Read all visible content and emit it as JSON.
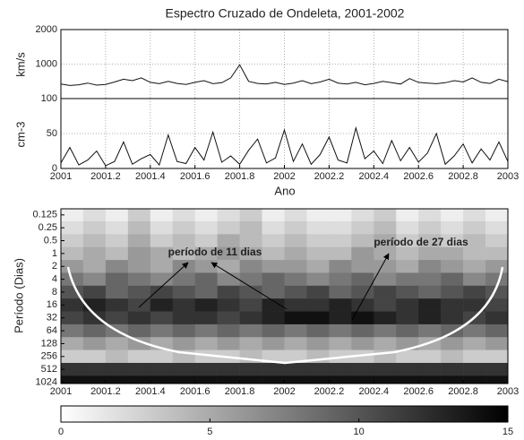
{
  "chart_data": [
    {
      "type": "line",
      "title": "Espectro Cruzado de Ondeleta, 2001-2002",
      "ylabel": "km/s",
      "color": "#111111",
      "x": [
        2001,
        2001.04,
        2001.08,
        2001.12,
        2001.16,
        2001.2,
        2001.24,
        2001.28,
        2001.32,
        2001.36,
        2001.4,
        2001.44,
        2001.48,
        2001.52,
        2001.56,
        2001.6,
        2001.64,
        2001.68,
        2001.72,
        2001.76,
        2001.8,
        2001.84,
        2001.88,
        2001.92,
        2001.96,
        2002,
        2002.04,
        2002.08,
        2002.12,
        2002.16,
        2002.2,
        2002.24,
        2002.28,
        2002.32,
        2002.36,
        2002.4,
        2002.44,
        2002.48,
        2002.52,
        2002.56,
        2002.6,
        2002.64,
        2002.68,
        2002.72,
        2002.76,
        2002.8,
        2002.84,
        2002.88,
        2002.92,
        2002.96,
        2003
      ],
      "values": [
        420,
        380,
        400,
        450,
        390,
        410,
        480,
        560,
        520,
        600,
        470,
        430,
        500,
        440,
        410,
        470,
        520,
        430,
        460,
        600,
        980,
        500,
        440,
        420,
        470,
        410,
        450,
        520,
        430,
        480,
        560,
        450,
        420,
        470,
        400,
        440,
        500,
        460,
        420,
        580,
        470,
        450,
        430,
        460,
        520,
        480,
        600,
        470,
        440,
        560,
        490
      ],
      "xlim": [
        2001,
        2003
      ],
      "ylim": [
        0,
        2000
      ],
      "yticks": [
        1000,
        2000
      ],
      "grid": true
    },
    {
      "type": "line",
      "ylabel": "cm-3",
      "xlabel": "Ano",
      "color": "#111111",
      "x": [
        2001,
        2001.04,
        2001.08,
        2001.12,
        2001.16,
        2001.2,
        2001.24,
        2001.28,
        2001.32,
        2001.36,
        2001.4,
        2001.44,
        2001.48,
        2001.52,
        2001.56,
        2001.6,
        2001.64,
        2001.68,
        2001.72,
        2001.76,
        2001.8,
        2001.84,
        2001.88,
        2001.92,
        2001.96,
        2002,
        2002.04,
        2002.08,
        2002.12,
        2002.16,
        2002.2,
        2002.24,
        2002.28,
        2002.32,
        2002.36,
        2002.4,
        2002.44,
        2002.48,
        2002.52,
        2002.56,
        2002.6,
        2002.64,
        2002.68,
        2002.72,
        2002.76,
        2002.8,
        2002.84,
        2002.88,
        2002.92,
        2002.96,
        2003
      ],
      "values": [
        8,
        30,
        5,
        12,
        25,
        4,
        10,
        38,
        6,
        14,
        20,
        5,
        48,
        10,
        7,
        30,
        12,
        52,
        9,
        18,
        6,
        26,
        42,
        8,
        15,
        55,
        10,
        35,
        6,
        20,
        45,
        12,
        8,
        58,
        14,
        25,
        7,
        40,
        11,
        30,
        9,
        22,
        50,
        6,
        18,
        35,
        8,
        28,
        12,
        38,
        10
      ],
      "xlim": [
        2001,
        2003
      ],
      "xticks": [
        2001,
        2001.2,
        2001.4,
        2001.6,
        2001.8,
        2002,
        2002.2,
        2002.4,
        2002.6,
        2002.8,
        2003
      ],
      "ylim": [
        0,
        100
      ],
      "yticks": [
        0,
        50,
        100
      ],
      "grid": true
    },
    {
      "type": "heatmap",
      "ylabel": "Período (Dias)",
      "log_y": true,
      "reversed_y": true,
      "x": [
        2001.05,
        2001.15,
        2001.25,
        2001.35,
        2001.45,
        2001.55,
        2001.65,
        2001.75,
        2001.85,
        2001.95,
        2002.05,
        2002.15,
        2002.25,
        2002.35,
        2002.45,
        2002.55,
        2002.65,
        2002.75,
        2002.85,
        2002.95
      ],
      "y": [
        0.125,
        0.25,
        0.5,
        1,
        2,
        4,
        8,
        16,
        32,
        64,
        128,
        256,
        512,
        1024
      ],
      "z": [
        [
          1,
          2,
          1,
          3,
          1,
          2,
          1,
          2,
          3,
          1,
          2,
          1,
          1,
          2,
          3,
          1,
          2,
          1,
          2,
          1
        ],
        [
          2,
          3,
          2,
          4,
          2,
          3,
          2,
          3,
          4,
          2,
          3,
          2,
          2,
          3,
          4,
          2,
          3,
          2,
          3,
          2
        ],
        [
          3,
          4,
          3,
          5,
          3,
          4,
          3,
          5,
          4,
          3,
          4,
          3,
          3,
          4,
          5,
          3,
          4,
          3,
          4,
          3
        ],
        [
          4,
          5,
          4,
          6,
          5,
          4,
          5,
          6,
          5,
          4,
          5,
          4,
          4,
          6,
          5,
          4,
          5,
          5,
          4,
          4
        ],
        [
          6,
          5,
          7,
          6,
          5,
          7,
          6,
          5,
          7,
          6,
          6,
          5,
          7,
          6,
          6,
          5,
          7,
          6,
          5,
          6
        ],
        [
          8,
          7,
          9,
          8,
          7,
          8,
          9,
          7,
          8,
          9,
          8,
          7,
          8,
          9,
          7,
          8,
          8,
          9,
          7,
          8
        ],
        [
          10,
          11,
          9,
          10,
          11,
          10,
          9,
          11,
          10,
          9,
          10,
          11,
          9,
          10,
          11,
          10,
          9,
          10,
          11,
          10
        ],
        [
          12,
          13,
          12,
          11,
          13,
          12,
          13,
          12,
          11,
          13,
          12,
          12,
          13,
          12,
          11,
          12,
          13,
          12,
          12,
          11
        ],
        [
          11,
          12,
          11,
          12,
          11,
          12,
          12,
          11,
          12,
          13,
          14,
          14,
          13,
          14,
          13,
          12,
          13,
          12,
          11,
          12
        ],
        [
          8,
          9,
          8,
          9,
          8,
          9,
          8,
          9,
          8,
          9,
          8,
          9,
          8,
          9,
          8,
          9,
          8,
          9,
          8,
          9
        ],
        [
          5,
          6,
          5,
          6,
          5,
          6,
          5,
          6,
          5,
          6,
          5,
          6,
          5,
          6,
          5,
          6,
          5,
          6,
          5,
          6
        ],
        [
          3,
          3,
          4,
          3,
          3,
          4,
          3,
          3,
          4,
          3,
          3,
          4,
          3,
          3,
          4,
          3,
          3,
          4,
          3,
          3
        ],
        [
          12,
          12,
          12,
          12,
          12,
          12,
          12,
          12,
          12,
          12,
          12,
          12,
          12,
          12,
          12,
          12,
          12,
          12,
          12,
          12
        ],
        [
          14,
          14,
          14,
          14,
          14,
          14,
          14,
          14,
          14,
          14,
          14,
          14,
          14,
          14,
          14,
          14,
          14,
          14,
          14,
          14
        ]
      ],
      "xlim": [
        2001,
        2003
      ],
      "xticks": [
        2001,
        2001.2,
        2001.4,
        2001.6,
        2001.8,
        2002,
        2002.2,
        2002.4,
        2002.6,
        2002.8,
        2003
      ],
      "ylim": [
        0.09,
        1100
      ],
      "yticks": [
        0.125,
        0.25,
        0.5,
        1,
        2,
        4,
        8,
        16,
        32,
        64,
        128,
        256,
        512,
        1024
      ],
      "annotations": [
        "período de 11 dias",
        "período de 27 dias"
      ],
      "colorbar": {
        "lim": [
          0,
          15
        ],
        "ticks": [
          0,
          5,
          10,
          15
        ]
      }
    }
  ]
}
